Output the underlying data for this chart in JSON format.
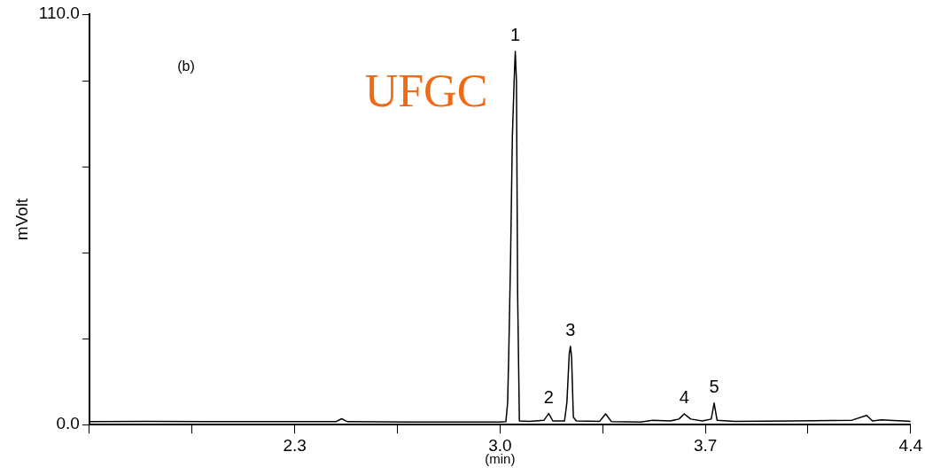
{
  "chart_data": {
    "type": "line",
    "xlabel": "(min)",
    "ylabel": "mVolt",
    "color": "#000000",
    "marker": "none",
    "line_style": "solid",
    "grid": false,
    "legend": false,
    "xlim": [
      1.6,
      4.4
    ],
    "xticks": [
      {
        "value": 1.6,
        "label": null
      },
      {
        "value": 1.95,
        "label": null
      },
      2.3,
      {
        "value": 2.65,
        "label": null
      },
      {
        "value": 3.0,
        "label": "3.0"
      },
      {
        "value": 3.35,
        "label": null
      },
      3.7,
      {
        "value": 4.05,
        "label": null
      },
      4.4
    ],
    "ylim": [
      0,
      110
    ],
    "yticks": [
      {
        "value": 0,
        "label": "0.0"
      },
      {
        "value": 23,
        "label": null
      },
      {
        "value": 46,
        "label": null
      },
      {
        "value": 69,
        "label": null
      },
      {
        "value": 92,
        "label": null
      },
      {
        "value": 110,
        "label": "110.0"
      }
    ],
    "x": [
      1.6,
      1.8,
      2.0,
      2.2,
      2.44,
      2.46,
      2.48,
      2.7,
      3.0,
      3.02,
      3.026,
      3.03,
      3.036,
      3.042,
      3.048,
      3.052,
      3.056,
      3.06,
      3.066,
      3.1,
      3.15,
      3.166,
      3.18,
      3.22,
      3.228,
      3.236,
      3.24,
      3.244,
      3.25,
      3.26,
      3.34,
      3.36,
      3.38,
      3.48,
      3.52,
      3.58,
      3.61,
      3.628,
      3.65,
      3.69,
      3.72,
      3.73,
      3.74,
      3.8,
      4.0,
      4.2,
      4.25,
      4.27,
      4.3,
      4.4
    ],
    "values": [
      0.8,
      0.9,
      0.8,
      0.8,
      0.8,
      1.6,
      0.8,
      0.7,
      0.7,
      0.8,
      6,
      20,
      45,
      77,
      92,
      100,
      92,
      35,
      1.0,
      0.9,
      1.2,
      3.0,
      1.0,
      1.0,
      6,
      19,
      21,
      18,
      2,
      1.0,
      0.9,
      2.9,
      0.8,
      0.7,
      1.2,
      1.0,
      1.5,
      2.9,
      1.5,
      1.0,
      1.5,
      5.8,
      1.2,
      0.9,
      1.0,
      1.2,
      2.5,
      1.0,
      1.3,
      0.9
    ],
    "annotations": [
      "(b)",
      "UFGC",
      {
        "text": "1",
        "x": 3.052,
        "y": 100
      },
      {
        "text": "2",
        "x": 3.166,
        "y": 3.0
      },
      {
        "text": "3",
        "x": 3.24,
        "y": 21
      },
      {
        "text": "4",
        "x": 3.628,
        "y": 2.9
      },
      {
        "text": "5",
        "x": 3.73,
        "y": 5.8
      }
    ]
  }
}
